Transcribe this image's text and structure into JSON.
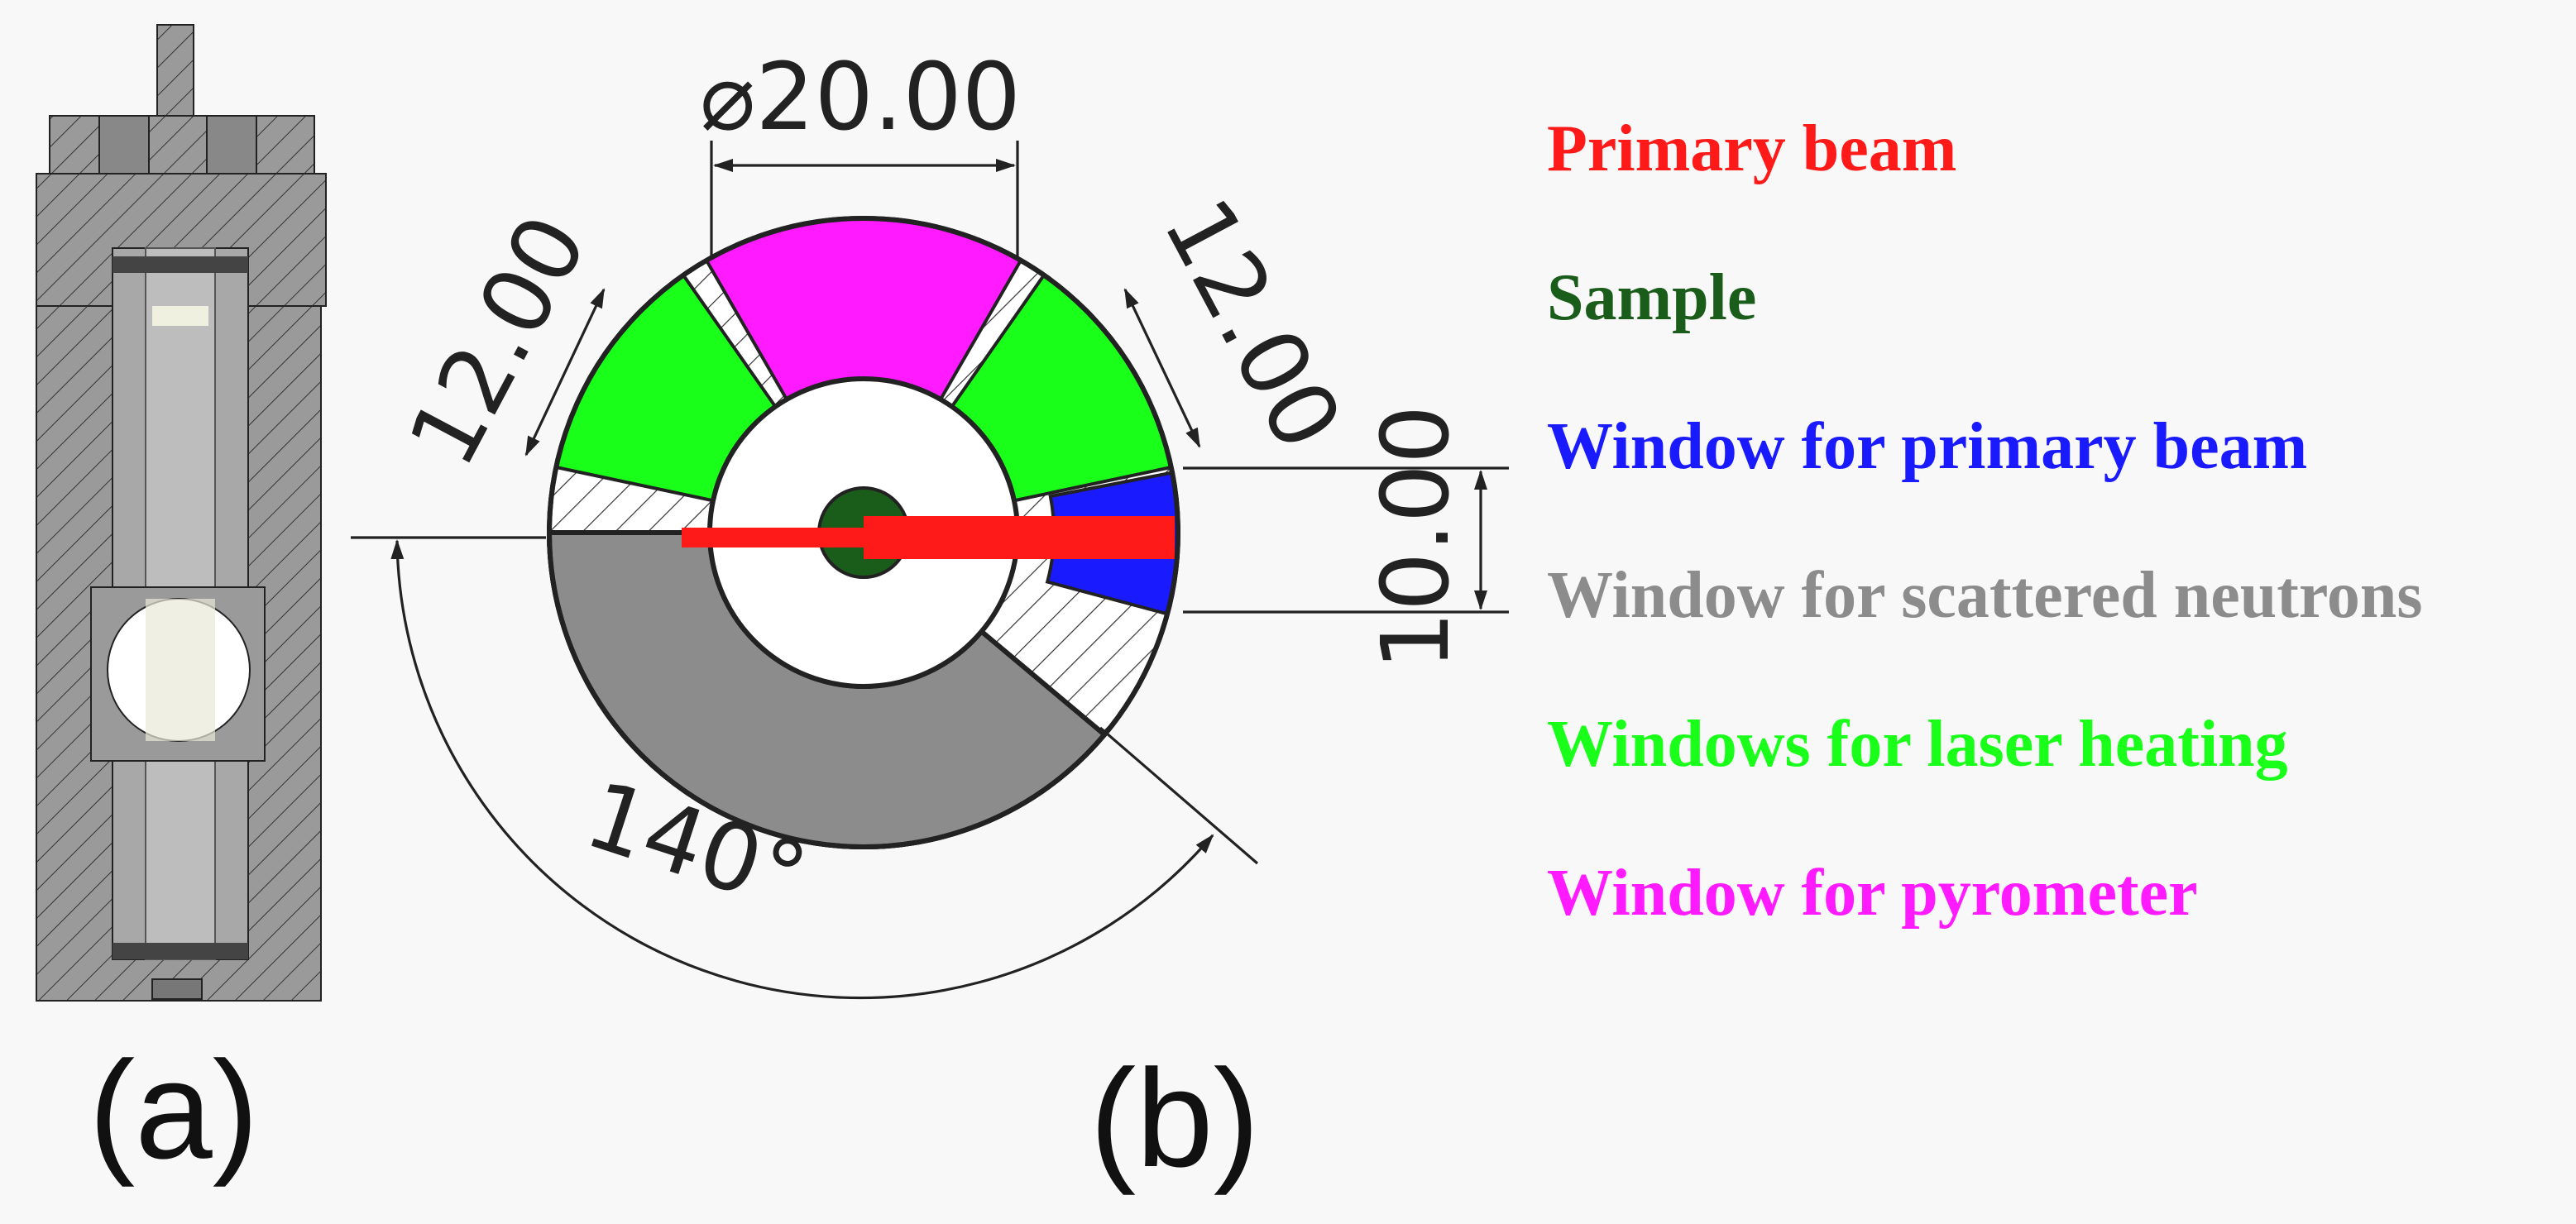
{
  "dimensions": {
    "diameter": "⌀20.00",
    "width_left": "12.00",
    "width_right": "12.00",
    "height": "10.00",
    "angle": "140°"
  },
  "panel_labels": {
    "a": "(a)",
    "b": "(b)"
  },
  "legend": [
    {
      "label": "Primary beam",
      "color": "#ff1a1a"
    },
    {
      "label": "Sample",
      "color": "#1a5c1a"
    },
    {
      "label": "Window for primary beam",
      "color": "#1a1aff"
    },
    {
      "label": "Window for scattered neutrons",
      "color": "#8c8c8c"
    },
    {
      "label": "Windows for laser heating",
      "color": "#1aff1a"
    },
    {
      "label": "Window for pyrometer",
      "color": "#ff1aff"
    }
  ]
}
